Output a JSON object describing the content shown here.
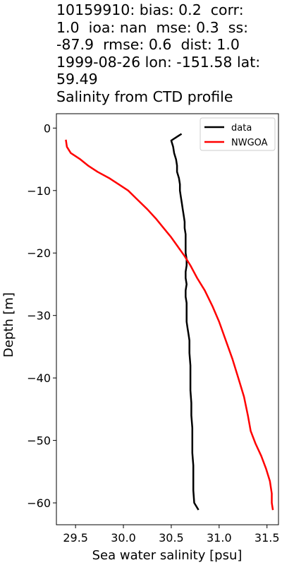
{
  "chart_data": {
    "type": "line",
    "title_lines": [
      "10159910: bias: 0.2  corr:",
      "1.0  ioa: nan  mse: 0.3  ss:",
      "-87.9  rmse: 0.6  dist: 1.0",
      "1999-08-26 lon: -151.58 lat:",
      "59.49",
      "Salinity from CTD profile"
    ],
    "xlabel": "Sea water salinity [psu]",
    "ylabel": "Depth [m]",
    "xlim": [
      29.3,
      31.62
    ],
    "ylim": [
      -63.5,
      2.3
    ],
    "xticks": [
      29.5,
      30.0,
      30.5,
      31.0,
      31.5
    ],
    "xtick_labels": [
      "29.5",
      "30.0",
      "30.5",
      "31.0",
      "31.5"
    ],
    "yticks": [
      0,
      -10,
      -20,
      -30,
      -40,
      -50,
      -60
    ],
    "ytick_labels": [
      "0",
      "−10",
      "−20",
      "−30",
      "−40",
      "−50",
      "−60"
    ],
    "legend": {
      "placement": "top-right"
    },
    "series": [
      {
        "name": "data",
        "color": "#000000",
        "points": [
          [
            30.6,
            -1
          ],
          [
            30.55,
            -1.5
          ],
          [
            30.5,
            -2
          ],
          [
            30.52,
            -3
          ],
          [
            30.53,
            -4
          ],
          [
            30.55,
            -5
          ],
          [
            30.56,
            -6
          ],
          [
            30.56,
            -7
          ],
          [
            30.58,
            -8
          ],
          [
            30.59,
            -9
          ],
          [
            30.59,
            -10
          ],
          [
            30.6,
            -11
          ],
          [
            30.61,
            -12
          ],
          [
            30.62,
            -13
          ],
          [
            30.63,
            -14
          ],
          [
            30.64,
            -15
          ],
          [
            30.64,
            -16
          ],
          [
            30.65,
            -17
          ],
          [
            30.65,
            -18
          ],
          [
            30.65,
            -19
          ],
          [
            30.65,
            -20
          ],
          [
            30.66,
            -21
          ],
          [
            30.66,
            -22
          ],
          [
            30.65,
            -23
          ],
          [
            30.65,
            -24
          ],
          [
            30.66,
            -25
          ],
          [
            30.65,
            -26
          ],
          [
            30.65,
            -27
          ],
          [
            30.66,
            -28
          ],
          [
            30.66,
            -29
          ],
          [
            30.66,
            -30
          ],
          [
            30.66,
            -31
          ],
          [
            30.67,
            -32
          ],
          [
            30.68,
            -33
          ],
          [
            30.69,
            -34
          ],
          [
            30.69,
            -36
          ],
          [
            30.7,
            -38
          ],
          [
            30.7,
            -40
          ],
          [
            30.7,
            -42
          ],
          [
            30.71,
            -44
          ],
          [
            30.71,
            -46
          ],
          [
            30.72,
            -48
          ],
          [
            30.72,
            -50
          ],
          [
            30.72,
            -52
          ],
          [
            30.73,
            -54
          ],
          [
            30.73,
            -56
          ],
          [
            30.73,
            -58
          ],
          [
            30.74,
            -60
          ],
          [
            30.78,
            -61
          ]
        ]
      },
      {
        "name": "NWGOA",
        "color": "#ff0000",
        "points": [
          [
            29.4,
            -2
          ],
          [
            29.41,
            -3
          ],
          [
            29.45,
            -4
          ],
          [
            29.55,
            -5
          ],
          [
            29.63,
            -6
          ],
          [
            29.73,
            -7
          ],
          [
            29.85,
            -8
          ],
          [
            29.95,
            -9
          ],
          [
            30.05,
            -10
          ],
          [
            30.15,
            -11.5
          ],
          [
            30.25,
            -13
          ],
          [
            30.34,
            -14.5
          ],
          [
            30.42,
            -16
          ],
          [
            30.5,
            -17.5
          ],
          [
            30.57,
            -19
          ],
          [
            30.64,
            -20.5
          ],
          [
            30.7,
            -22
          ],
          [
            30.77,
            -24
          ],
          [
            30.85,
            -26
          ],
          [
            30.93,
            -28.5
          ],
          [
            31.0,
            -31
          ],
          [
            31.07,
            -34
          ],
          [
            31.14,
            -37
          ],
          [
            31.2,
            -40
          ],
          [
            31.26,
            -43
          ],
          [
            31.3,
            -46
          ],
          [
            31.33,
            -48.5
          ],
          [
            31.38,
            -50.5
          ],
          [
            31.44,
            -52.5
          ],
          [
            31.49,
            -54.5
          ],
          [
            31.53,
            -56.5
          ],
          [
            31.55,
            -58.5
          ],
          [
            31.55,
            -60
          ],
          [
            31.56,
            -61
          ]
        ]
      }
    ]
  }
}
